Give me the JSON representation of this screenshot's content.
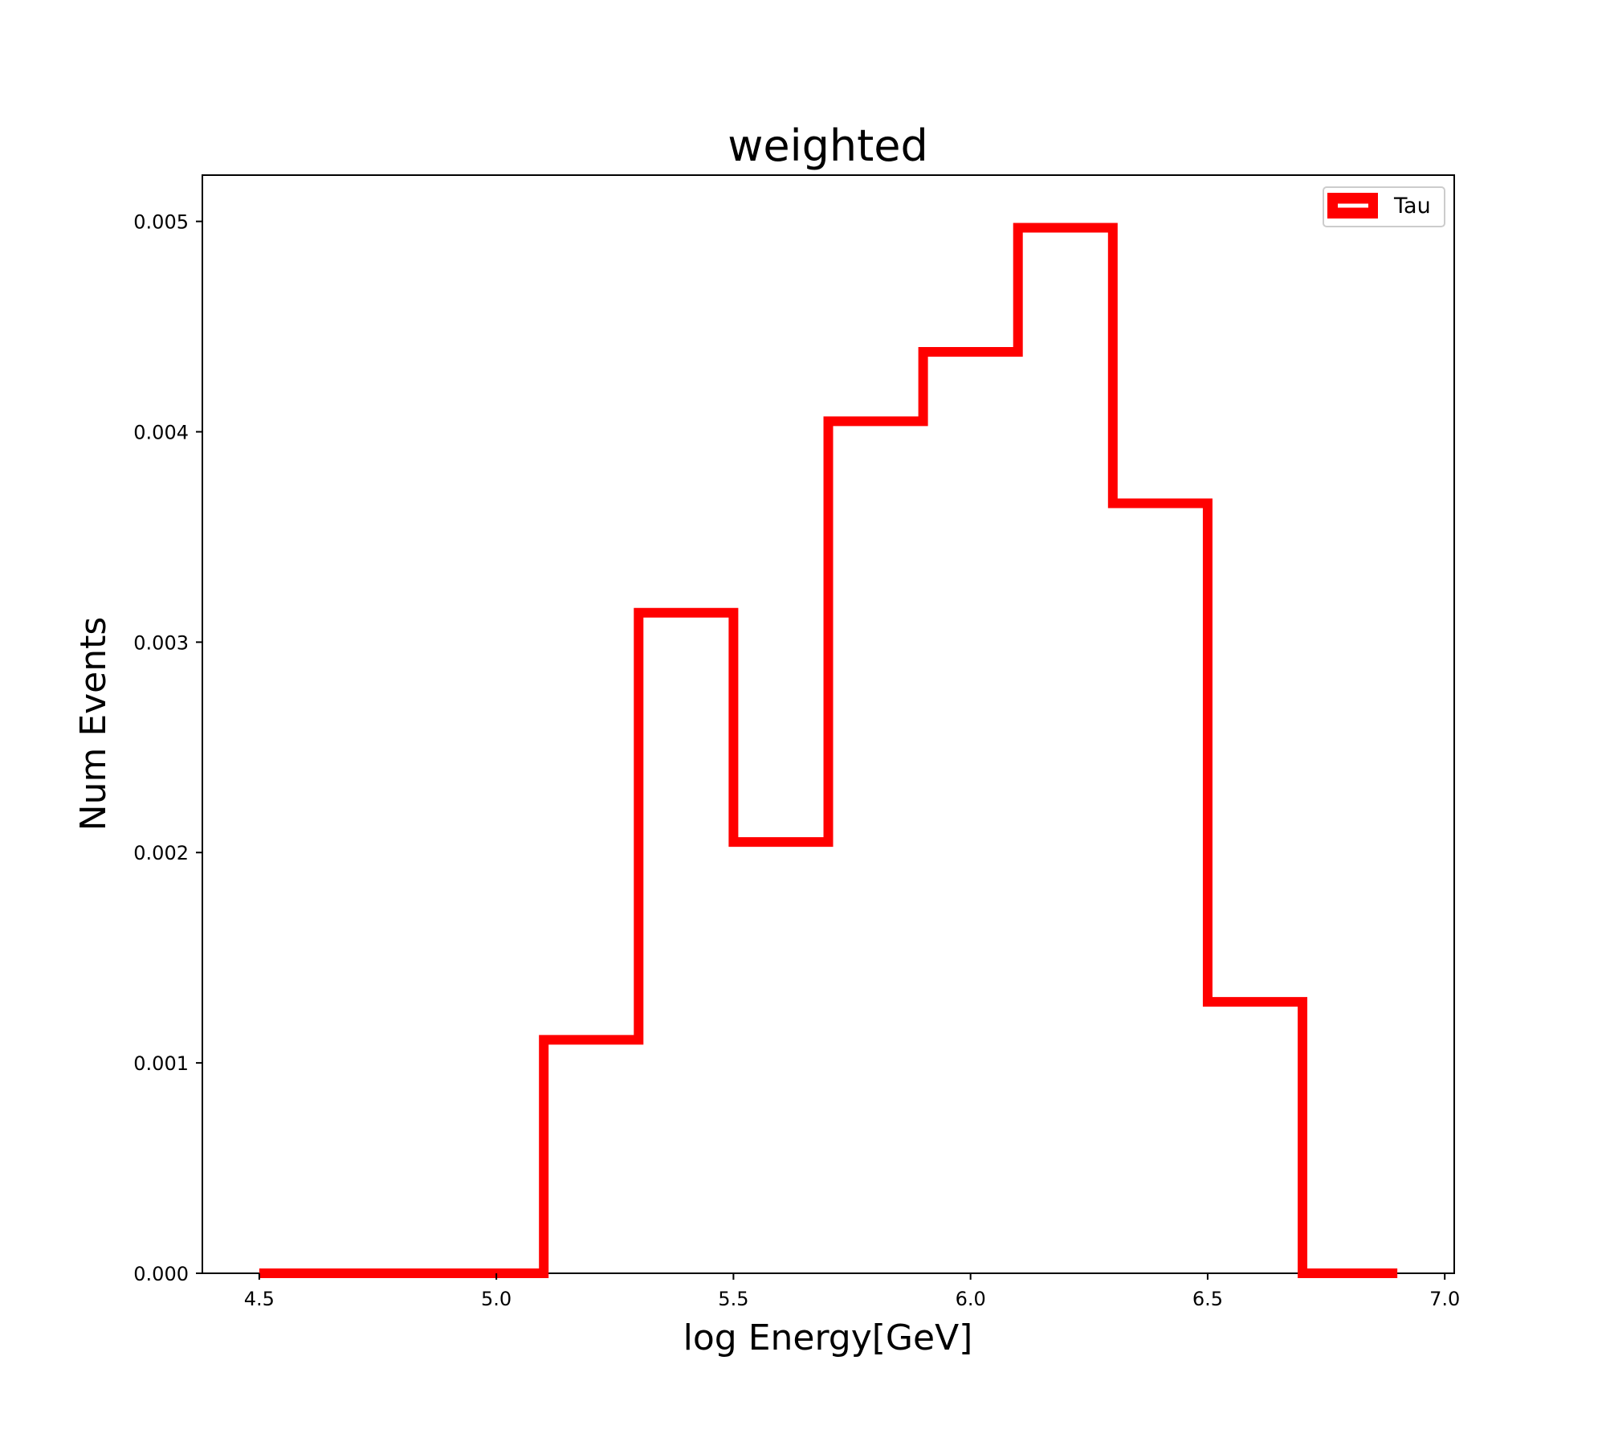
{
  "chart_data": {
    "type": "histogram-step",
    "title": "weighted",
    "xlabel": "log Energy[GeV]",
    "ylabel": "Num Events",
    "xlim": [
      4.38,
      7.02
    ],
    "ylim": [
      0,
      0.00522
    ],
    "x_ticks": [
      4.5,
      5.0,
      5.5,
      6.0,
      6.5,
      7.0
    ],
    "x_tick_labels": [
      "4.5",
      "5.0",
      "5.5",
      "6.0",
      "6.5",
      "7.0"
    ],
    "y_ticks": [
      0,
      0.001,
      0.002,
      0.003,
      0.004,
      0.005
    ],
    "y_tick_labels": [
      "0.000",
      "0.001",
      "0.002",
      "0.003",
      "0.004",
      "0.005"
    ],
    "grid": false,
    "legend_position": "top-right",
    "series": [
      {
        "name": "Tau",
        "color": "#ff0000",
        "bin_edges": [
          4.5,
          4.7,
          4.9,
          5.1,
          5.3,
          5.5,
          5.7,
          5.9,
          6.1,
          6.3,
          6.5,
          6.7,
          6.9
        ],
        "values": [
          0,
          0,
          0,
          0.00111,
          0.00314,
          0.00205,
          0.00405,
          0.00438,
          0.00497,
          0.00366,
          0.00129,
          0
        ]
      }
    ]
  }
}
